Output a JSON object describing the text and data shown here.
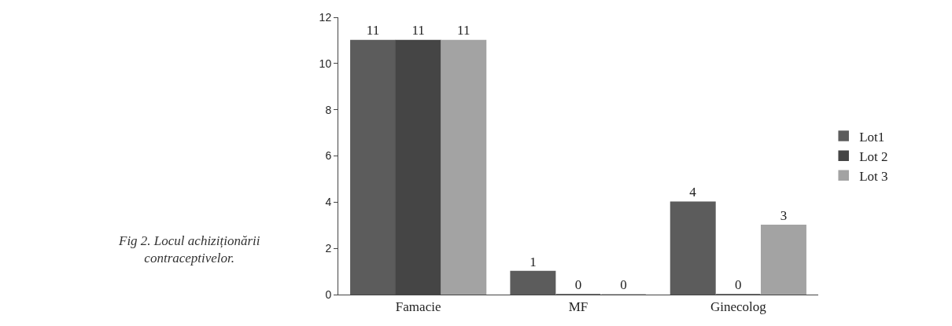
{
  "chart_data": {
    "type": "bar",
    "categories": [
      "Famacie",
      "MF",
      "Ginecolog"
    ],
    "series": [
      {
        "name": "Lot1",
        "color": "#5c5c5c",
        "values": [
          11,
          1,
          4
        ]
      },
      {
        "name": "Lot 2",
        "color": "#454545",
        "values": [
          11,
          0,
          0
        ]
      },
      {
        "name": "Lot 3",
        "color": "#a3a3a3",
        "values": [
          11,
          0,
          3
        ]
      }
    ],
    "ylim": [
      0,
      12
    ],
    "yticks": [
      0,
      2,
      4,
      6,
      8,
      10,
      12
    ],
    "grid": false,
    "legend": "right",
    "data_labels": true,
    "annotations": [
      "Fig 2. Locul achiziționării\ncontraceptivelor."
    ]
  }
}
